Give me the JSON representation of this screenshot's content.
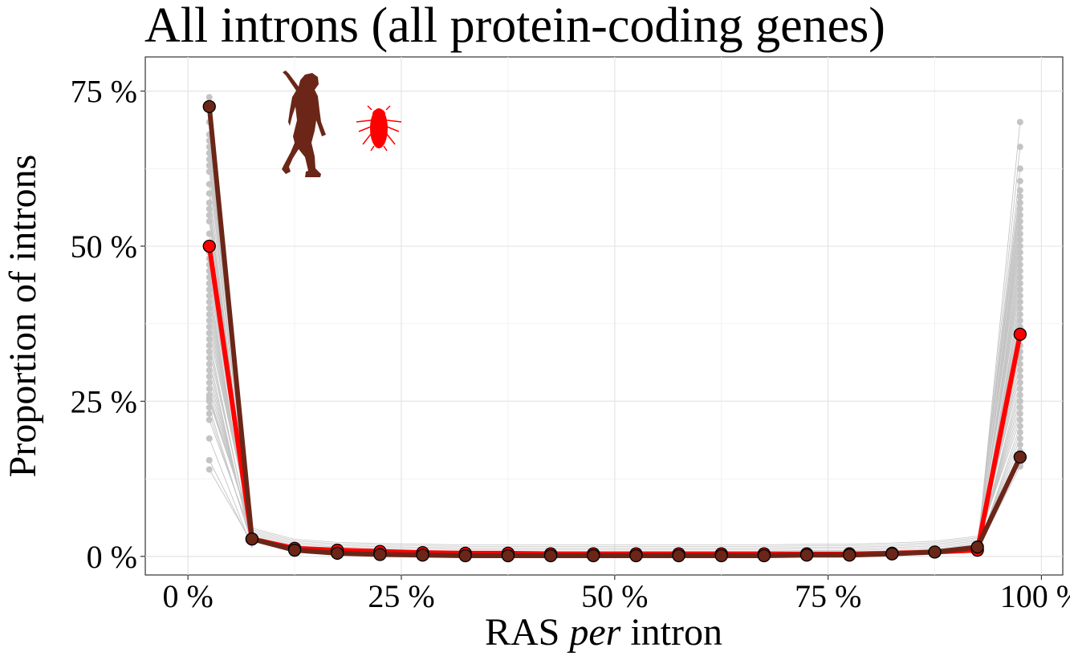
{
  "chart_data": {
    "type": "line",
    "title": "All introns (all protein-coding genes)",
    "xlabel": {
      "prefix": "RAS ",
      "italic": "per",
      "suffix": " intron"
    },
    "ylabel": "Proportion of introns",
    "xlim": [
      -5,
      102.5
    ],
    "ylim": [
      -3,
      80.5
    ],
    "x_ticks": [
      0,
      25,
      50,
      75,
      100
    ],
    "x_tick_labels": [
      "0 %",
      "25 %",
      "50 %",
      "75 %",
      "100 %"
    ],
    "y_ticks": [
      0,
      25,
      50,
      75
    ],
    "y_tick_labels": [
      "0 %",
      "25 %",
      "50 %",
      "75 %"
    ],
    "grid": true,
    "x": [
      2.5,
      7.5,
      12.5,
      17.5,
      22.5,
      27.5,
      32.5,
      37.5,
      42.5,
      47.5,
      52.5,
      57.5,
      62.5,
      67.5,
      72.5,
      77.5,
      82.5,
      87.5,
      92.5,
      97.5
    ],
    "series": [
      {
        "role": "highlight",
        "color": "#ff0000",
        "icon": "fly-silhouette",
        "values": [
          50.0,
          2.8,
          1.3,
          1.0,
          0.8,
          0.6,
          0.5,
          0.5,
          0.4,
          0.4,
          0.4,
          0.4,
          0.4,
          0.4,
          0.4,
          0.4,
          0.5,
          0.7,
          1.0,
          35.8
        ]
      },
      {
        "role": "highlight",
        "color": "#6b2618",
        "icon": "human-silhouette",
        "values": [
          72.5,
          2.8,
          1.0,
          0.5,
          0.3,
          0.2,
          0.1,
          0.1,
          0.1,
          0.1,
          0.1,
          0.1,
          0.1,
          0.1,
          0.2,
          0.2,
          0.4,
          0.7,
          1.5,
          16.0
        ]
      }
    ],
    "background_species": {
      "color": "#c4c4c4",
      "first_values": [
        74,
        73,
        72,
        70,
        68,
        67,
        66,
        65,
        64,
        63,
        62,
        60,
        58.5,
        57,
        56,
        55,
        54,
        52,
        50,
        49,
        48,
        47,
        46,
        45,
        44,
        43,
        42,
        41,
        40,
        39,
        38,
        37,
        36,
        35,
        34,
        33,
        32,
        31,
        30,
        29,
        28,
        27,
        26,
        25.5,
        25,
        24,
        23,
        22,
        19,
        15.5,
        14
      ],
      "second_values": [
        1.4,
        1.8,
        2.2,
        2.6,
        3.0,
        3.4,
        3.8,
        4.2,
        4.6,
        2.0,
        2.4,
        3.2
      ],
      "mid_values": [
        0.2,
        0.4,
        0.6,
        0.8,
        1.0,
        1.2,
        1.5
      ],
      "last_values": [
        70,
        66,
        62.5,
        60.5,
        59,
        58,
        57,
        56,
        55,
        54,
        53,
        52,
        51,
        50,
        49,
        48,
        47,
        46,
        45,
        44,
        43,
        42,
        41,
        40,
        39,
        38,
        37,
        36,
        35,
        34,
        33,
        32,
        31,
        30,
        29,
        28,
        27,
        26,
        25,
        24,
        23,
        22,
        21,
        20,
        19,
        18,
        17,
        16,
        15,
        14.5
      ]
    }
  }
}
